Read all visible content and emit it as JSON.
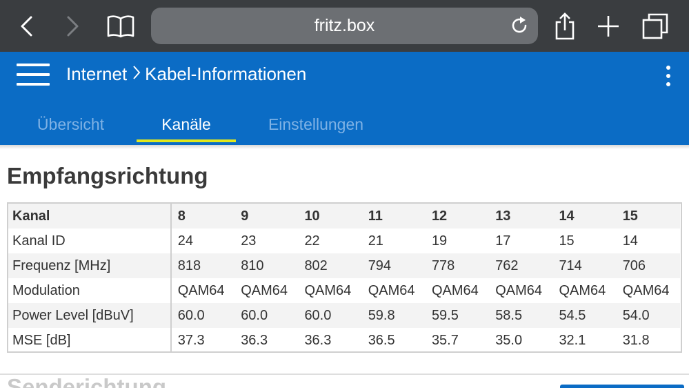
{
  "browser": {
    "url": "fritz.box",
    "icons": [
      "back-icon",
      "forward-icon",
      "bookmarks-icon",
      "reload-icon",
      "share-icon",
      "new-tab-icon",
      "tabs-icon"
    ]
  },
  "header": {
    "breadcrumb_parent": "Internet",
    "breadcrumb_current": "Kabel-Informationen"
  },
  "tabs": [
    {
      "label": "Übersicht",
      "active": false
    },
    {
      "label": "Kanäle",
      "active": true
    },
    {
      "label": "Einstellungen",
      "active": false
    }
  ],
  "section": {
    "title": "Empfangsrichtung"
  },
  "table": {
    "rows": [
      {
        "label": "Kanal",
        "values": [
          "8",
          "9",
          "10",
          "11",
          "12",
          "13",
          "14",
          "15"
        ]
      },
      {
        "label": "Kanal ID",
        "values": [
          "24",
          "23",
          "22",
          "21",
          "19",
          "17",
          "15",
          "14"
        ]
      },
      {
        "label": "Frequenz [MHz]",
        "values": [
          "818",
          "810",
          "802",
          "794",
          "778",
          "762",
          "714",
          "706"
        ]
      },
      {
        "label": "Modulation",
        "values": [
          "QAM64",
          "QAM64",
          "QAM64",
          "QAM64",
          "QAM64",
          "QAM64",
          "QAM64",
          "QAM64"
        ]
      },
      {
        "label": "Power Level [dBuV]",
        "values": [
          "60.0",
          "60.0",
          "60.0",
          "59.8",
          "59.5",
          "58.5",
          "54.5",
          "54.0"
        ]
      },
      {
        "label": "MSE [dB]",
        "values": [
          "37.3",
          "36.3",
          "36.3",
          "36.5",
          "35.7",
          "35.0",
          "32.1",
          "31.8"
        ]
      }
    ]
  },
  "section2": {
    "title": "Senderichtung"
  },
  "colors": {
    "brand_blue": "#0b6cc5",
    "tab_underline": "#e2e81c",
    "browser_bar": "#3a3d40"
  }
}
